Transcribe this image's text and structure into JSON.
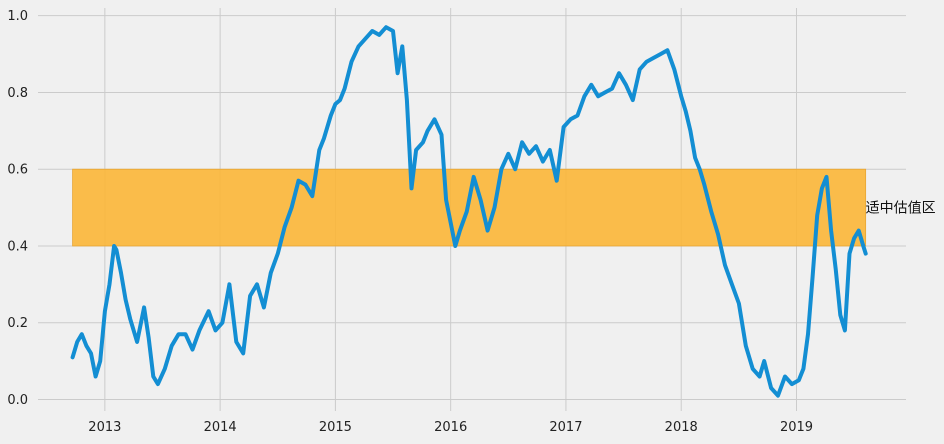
{
  "chart_data": {
    "type": "line",
    "title": "",
    "xlabel": "",
    "ylabel": "",
    "xlim": [
      2012.42,
      2019.95
    ],
    "ylim": [
      -0.03,
      1.02
    ],
    "grid": true,
    "legend": "none",
    "x_ticks": [
      2013,
      2014,
      2015,
      2016,
      2017,
      2018,
      2019
    ],
    "x_tick_labels": [
      "2013",
      "2014",
      "2015",
      "2016",
      "2017",
      "2018",
      "2019"
    ],
    "y_ticks": [
      0.0,
      0.2,
      0.4,
      0.6,
      0.8,
      1.0
    ],
    "y_tick_labels": [
      "0.0",
      "0.2",
      "0.4",
      "0.6",
      "0.8",
      "1.0"
    ],
    "band": {
      "x_start": 2012.72,
      "x_end": 2019.6,
      "y_low": 0.4,
      "y_high": 0.6,
      "color": "#fbb637",
      "label": "适中估值区"
    },
    "series": [
      {
        "color": "#138ed3",
        "x": [
          2012.72,
          2012.76,
          2012.8,
          2012.84,
          2012.88,
          2012.92,
          2012.96,
          2013.0,
          2013.04,
          2013.08,
          2013.1,
          2013.14,
          2013.18,
          2013.22,
          2013.28,
          2013.34,
          2013.38,
          2013.42,
          2013.46,
          2013.52,
          2013.58,
          2013.64,
          2013.7,
          2013.76,
          2013.82,
          2013.9,
          2013.96,
          2014.02,
          2014.08,
          2014.14,
          2014.2,
          2014.26,
          2014.32,
          2014.38,
          2014.44,
          2014.5,
          2014.56,
          2014.62,
          2014.68,
          2014.74,
          2014.8,
          2014.86,
          2014.9,
          2014.96,
          2015.0,
          2015.04,
          2015.08,
          2015.14,
          2015.2,
          2015.26,
          2015.32,
          2015.38,
          2015.44,
          2015.5,
          2015.54,
          2015.58,
          2015.62,
          2015.66,
          2015.7,
          2015.76,
          2015.8,
          2015.86,
          2015.92,
          2015.96,
          2016.0,
          2016.04,
          2016.08,
          2016.14,
          2016.2,
          2016.26,
          2016.32,
          2016.38,
          2016.44,
          2016.5,
          2016.56,
          2016.62,
          2016.68,
          2016.74,
          2016.8,
          2016.86,
          2016.92,
          2016.98,
          2017.04,
          2017.1,
          2017.16,
          2017.22,
          2017.28,
          2017.34,
          2017.4,
          2017.46,
          2017.52,
          2017.58,
          2017.64,
          2017.7,
          2017.76,
          2017.82,
          2017.88,
          2017.94,
          2018.0,
          2018.04,
          2018.08,
          2018.12,
          2018.16,
          2018.2,
          2018.26,
          2018.32,
          2018.38,
          2018.44,
          2018.5,
          2018.56,
          2018.62,
          2018.68,
          2018.72,
          2018.78,
          2018.84,
          2018.9,
          2018.96,
          2019.02,
          2019.06,
          2019.1,
          2019.14,
          2019.18,
          2019.22,
          2019.26,
          2019.3,
          2019.34,
          2019.38,
          2019.42,
          2019.46,
          2019.5,
          2019.54,
          2019.58,
          2019.6
        ],
        "values": [
          0.11,
          0.15,
          0.17,
          0.14,
          0.12,
          0.06,
          0.1,
          0.23,
          0.3,
          0.4,
          0.39,
          0.33,
          0.26,
          0.21,
          0.15,
          0.24,
          0.16,
          0.06,
          0.04,
          0.08,
          0.14,
          0.17,
          0.17,
          0.13,
          0.18,
          0.23,
          0.18,
          0.2,
          0.3,
          0.15,
          0.12,
          0.27,
          0.3,
          0.24,
          0.33,
          0.38,
          0.45,
          0.5,
          0.57,
          0.56,
          0.53,
          0.65,
          0.68,
          0.74,
          0.77,
          0.78,
          0.81,
          0.88,
          0.92,
          0.94,
          0.96,
          0.95,
          0.97,
          0.96,
          0.85,
          0.92,
          0.78,
          0.55,
          0.65,
          0.67,
          0.7,
          0.73,
          0.69,
          0.52,
          0.46,
          0.4,
          0.44,
          0.49,
          0.58,
          0.52,
          0.44,
          0.5,
          0.6,
          0.64,
          0.6,
          0.67,
          0.64,
          0.66,
          0.62,
          0.65,
          0.57,
          0.71,
          0.73,
          0.74,
          0.79,
          0.82,
          0.79,
          0.8,
          0.81,
          0.85,
          0.82,
          0.78,
          0.86,
          0.88,
          0.89,
          0.9,
          0.91,
          0.86,
          0.79,
          0.75,
          0.7,
          0.63,
          0.6,
          0.56,
          0.49,
          0.43,
          0.35,
          0.3,
          0.25,
          0.14,
          0.08,
          0.06,
          0.1,
          0.03,
          0.01,
          0.06,
          0.04,
          0.05,
          0.08,
          0.17,
          0.32,
          0.48,
          0.55,
          0.58,
          0.44,
          0.34,
          0.22,
          0.18,
          0.38,
          0.42,
          0.44,
          0.4,
          0.38
        ]
      }
    ]
  }
}
